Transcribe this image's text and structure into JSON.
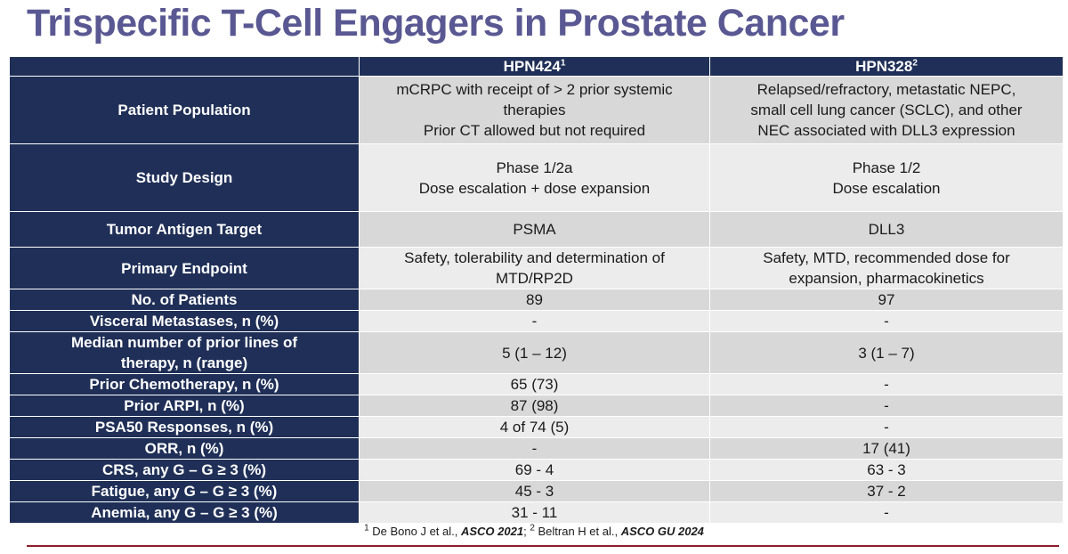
{
  "title": "Trispecific T-Cell Engagers in Prostate Cancer",
  "columns": [
    {
      "name": "HPN424",
      "ref": "1"
    },
    {
      "name": "HPN328",
      "ref": "2"
    }
  ],
  "rows": [
    {
      "label": "Patient Population",
      "hpn424": [
        "mCRPC with receipt of > 2 prior systemic",
        "therapies",
        "Prior CT allowed but not required"
      ],
      "hpn328": [
        "Relapsed/refractory, metastatic NEPC,",
        "small cell lung cancer (SCLC), and other",
        "NEC associated with DLL3 expression"
      ]
    },
    {
      "label": "Study Design",
      "hpn424": [
        "Phase 1/2a",
        "Dose escalation + dose expansion"
      ],
      "hpn328": [
        "Phase 1/2",
        "Dose escalation"
      ]
    },
    {
      "label": "Tumor Antigen Target",
      "hpn424": [
        "PSMA"
      ],
      "hpn328": [
        "DLL3"
      ]
    },
    {
      "label": "Primary Endpoint",
      "hpn424": [
        "Safety, tolerability and determination of",
        "MTD/RP2D"
      ],
      "hpn328": [
        "Safety, MTD, recommended dose for",
        "expansion, pharmacokinetics"
      ]
    },
    {
      "label": "No. of Patients",
      "hpn424": [
        "89"
      ],
      "hpn328": [
        "97"
      ]
    },
    {
      "label": "Visceral Metastases, n (%)",
      "hpn424": [
        "-"
      ],
      "hpn328": [
        "-"
      ]
    },
    {
      "label": "Median number of prior lines of therapy, n (range)",
      "hpn424": [
        "5 (1 – 12)"
      ],
      "hpn328": [
        "3 (1 – 7)"
      ]
    },
    {
      "label": "Prior Chemotherapy, n (%)",
      "hpn424": [
        "65 (73)"
      ],
      "hpn328": [
        "-"
      ]
    },
    {
      "label": "Prior ARPI, n (%)",
      "hpn424": [
        "87 (98)"
      ],
      "hpn328": [
        "-"
      ]
    },
    {
      "label": "PSA50 Responses, n (%)",
      "hpn424": [
        "4 of 74 (5)"
      ],
      "hpn328": [
        "-"
      ]
    },
    {
      "label": "ORR, n (%)",
      "hpn424": [
        "-"
      ],
      "hpn328": [
        "17 (41)"
      ]
    },
    {
      "label": "CRS, any G – G ≥ 3 (%)",
      "hpn424": [
        "69 - 4"
      ],
      "hpn328": [
        "63 - 3"
      ]
    },
    {
      "label": "Fatigue, any G – G ≥ 3 (%)",
      "hpn424": [
        "45 - 3"
      ],
      "hpn328": [
        "37 - 2"
      ]
    },
    {
      "label": "Anemia, any G – G ≥ 3 (%)",
      "hpn424": [
        "31 - 11"
      ],
      "hpn328": [
        "-"
      ]
    }
  ],
  "footnote": {
    "ref1": "1",
    "text1": " De Bono J et al., ",
    "source1": "ASCO 2021",
    "sep": "; ",
    "ref2": "2",
    "text2": " Beltran H et al., ",
    "source2": "ASCO GU 2024"
  },
  "colors": {
    "title": "#5a5892",
    "header_bg": "#1f2f57",
    "row_dark": "#d8d8d8",
    "row_light": "#ececec",
    "footer_rule": "#8c1d2c"
  }
}
